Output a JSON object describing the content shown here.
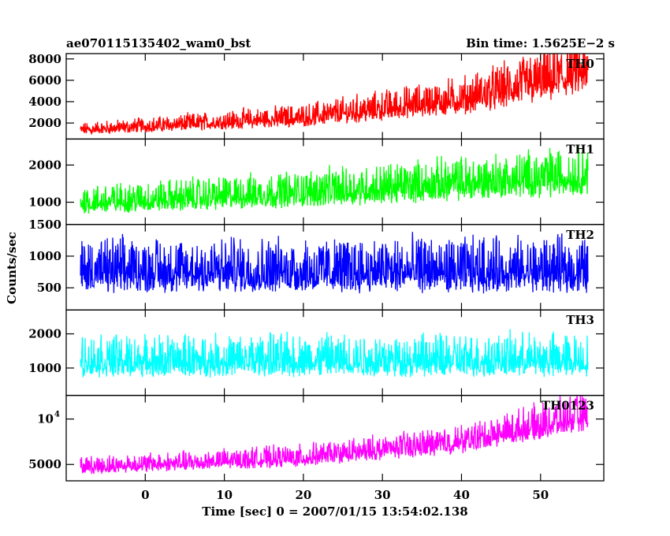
{
  "chart_data": {
    "type": "line",
    "figure_label": "ae070115135402_wam0_bst",
    "bin_time": "Bin time: 1.5625E−2 s",
    "xlabel": "Time [sec] 0 = 2007/01/15 13:54:02.138",
    "ylabel": "Counts/sec",
    "xlim": [
      -10,
      58
    ],
    "x_ticks": [
      0,
      10,
      20,
      30,
      40,
      50
    ],
    "x_tick_labels": [
      "0",
      "10",
      "20",
      "30",
      "40",
      "50"
    ],
    "x_range": [
      -8.2,
      56
    ],
    "grid": false,
    "series": [
      {
        "name": "TH0",
        "color": "#ff0000",
        "ylim": [
          500,
          8500
        ],
        "y_ticks": [
          2000,
          4000,
          6000,
          8000
        ],
        "y_tick_labels": [
          "2000",
          "4000",
          "6000",
          "8000"
        ],
        "trend": [
          {
            "x": -8,
            "y": 1300
          },
          {
            "x": 20,
            "y": 2400
          },
          {
            "x": 40,
            "y": 4000
          },
          {
            "x": 56,
            "y": 6500
          }
        ],
        "spread": 0.45
      },
      {
        "name": "TH1",
        "color": "#00ff00",
        "ylim": [
          400,
          2700
        ],
        "y_ticks": [
          1000,
          2000
        ],
        "y_tick_labels": [
          "1000",
          "2000"
        ],
        "trend": [
          {
            "x": -8,
            "y": 950
          },
          {
            "x": 20,
            "y": 1200
          },
          {
            "x": 56,
            "y": 1650
          }
        ],
        "spread": 0.42
      },
      {
        "name": "TH2",
        "color": "#0000ff",
        "ylim": [
          150,
          1500
        ],
        "y_ticks": [
          500,
          1000,
          1500
        ],
        "y_tick_labels": [
          "500",
          "1000",
          "1500"
        ],
        "trend": [
          {
            "x": -8,
            "y": 720
          },
          {
            "x": 56,
            "y": 720
          }
        ],
        "spread": 0.62
      },
      {
        "name": "TH3",
        "color": "#00ffff",
        "ylim": [
          200,
          2700
        ],
        "y_ticks": [
          1000,
          2000
        ],
        "y_tick_labels": [
          "1000",
          "2000"
        ],
        "trend": [
          {
            "x": -8,
            "y": 1150
          },
          {
            "x": 56,
            "y": 1180
          }
        ],
        "spread": 0.55
      },
      {
        "name": "TH0123",
        "color": "#ff00ff",
        "ylim": [
          3200,
          12600
        ],
        "y_ticks": [
          5000,
          10000
        ],
        "y_tick_labels": [
          "5000",
          ""
        ],
        "y_tick_text_10k": {
          "base": "10",
          "exponent": "4"
        },
        "trend": [
          {
            "x": -8,
            "y": 4600
          },
          {
            "x": 20,
            "y": 5600
          },
          {
            "x": 40,
            "y": 7300
          },
          {
            "x": 56,
            "y": 10200
          }
        ],
        "spread": 0.22
      }
    ]
  }
}
